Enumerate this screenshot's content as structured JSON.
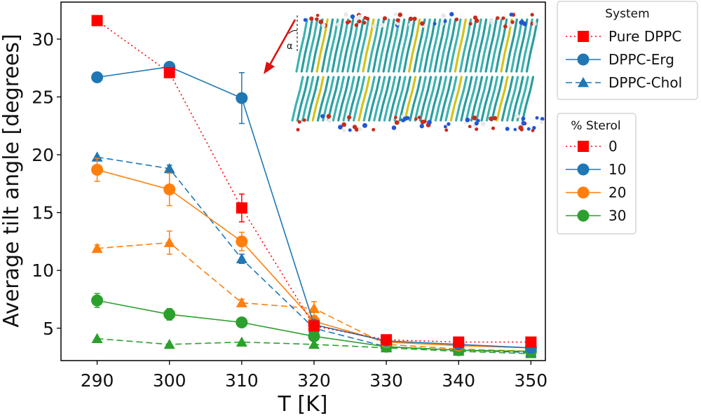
{
  "chart_data": {
    "type": "line",
    "xlabel": "T [K]",
    "ylabel": "Average tilt angle [degrees]",
    "xlim": [
      285,
      352
    ],
    "ylim": [
      2.2,
      33.2
    ],
    "xticks": [
      "290",
      "300",
      "310",
      "320",
      "330",
      "340",
      "350"
    ],
    "yticks": [
      "5",
      "10",
      "15",
      "20",
      "25",
      "30"
    ],
    "x": [
      290,
      300,
      310,
      320,
      330,
      340,
      350
    ],
    "series": [
      {
        "name": "Pure DPPC, 0% sterol",
        "system": "Pure DPPC",
        "sterol": 0,
        "color": "#ff0000",
        "marker": "square",
        "dash": "dotted",
        "values": [
          31.6,
          27.1,
          15.4,
          5.2,
          4.0,
          3.8,
          3.8
        ],
        "errors": [
          0.2,
          0.3,
          1.2,
          0.4,
          0.2,
          0.2,
          0.2
        ]
      },
      {
        "name": "DPPC-Erg, 10% sterol",
        "system": "DPPC-Erg",
        "sterol": 10,
        "color": "#1f77b4",
        "marker": "circle",
        "dash": "solid",
        "values": [
          26.7,
          27.6,
          24.9,
          5.3,
          3.9,
          3.6,
          3.3
        ],
        "errors": [
          0.2,
          0.3,
          2.2,
          0.3,
          0.1,
          0.1,
          0.1
        ]
      },
      {
        "name": "DPPC-Erg, 20% sterol",
        "system": "DPPC-Erg",
        "sterol": 20,
        "color": "#ff7f0e",
        "marker": "circle",
        "dash": "solid",
        "values": [
          18.7,
          17.0,
          12.5,
          5.6,
          3.8,
          3.5,
          3.3
        ],
        "errors": [
          1.0,
          1.4,
          0.8,
          0.4,
          0.1,
          0.1,
          0.1
        ]
      },
      {
        "name": "DPPC-Erg, 30% sterol",
        "system": "DPPC-Erg",
        "sterol": 30,
        "color": "#2ca02c",
        "marker": "circle",
        "dash": "solid",
        "values": [
          7.4,
          6.2,
          5.5,
          4.3,
          3.4,
          3.1,
          3.0
        ],
        "errors": [
          0.6,
          0.5,
          0.2,
          0.2,
          0.1,
          0.1,
          0.1
        ]
      },
      {
        "name": "DPPC-Chol, 10% sterol",
        "system": "DPPC-Chol",
        "sterol": 10,
        "color": "#1f77b4",
        "marker": "triangle",
        "dash": "dashed",
        "values": [
          19.8,
          18.8,
          11.0,
          5.0,
          3.4,
          3.1,
          2.9
        ],
        "errors": [
          0.2,
          0.3,
          0.4,
          0.2,
          0.1,
          0.1,
          0.1
        ]
      },
      {
        "name": "DPPC-Chol, 20% sterol",
        "system": "DPPC-Chol",
        "sterol": 20,
        "color": "#ff7f0e",
        "marker": "triangle",
        "dash": "dashed",
        "values": [
          11.9,
          12.4,
          7.2,
          6.7,
          3.6,
          3.2,
          3.0
        ],
        "errors": [
          0.3,
          1.0,
          0.3,
          0.6,
          0.1,
          0.1,
          0.1
        ]
      },
      {
        "name": "DPPC-Chol, 30% sterol",
        "system": "DPPC-Chol",
        "sterol": 30,
        "color": "#2ca02c",
        "marker": "triangle",
        "dash": "dashed",
        "values": [
          4.1,
          3.6,
          3.8,
          3.6,
          3.3,
          3.0,
          2.8
        ],
        "errors": [
          0.2,
          0.2,
          0.2,
          0.2,
          0.1,
          0.1,
          0.1
        ]
      }
    ],
    "legends": [
      {
        "title": "System",
        "entries": [
          {
            "label": "Pure DPPC",
            "color": "#ff0000",
            "marker": "square",
            "dash": "dotted"
          },
          {
            "label": "DPPC-Erg",
            "color": "#1f77b4",
            "marker": "circle",
            "dash": "solid"
          },
          {
            "label": "DPPC-Chol",
            "color": "#1f77b4",
            "marker": "triangle",
            "dash": "dashed"
          }
        ]
      },
      {
        "title": "% Sterol",
        "entries": [
          {
            "label": "0",
            "color": "#ff0000",
            "marker": "square",
            "dash": "dotted"
          },
          {
            "label": "10",
            "color": "#1f77b4",
            "marker": "circle",
            "dash": "solid"
          },
          {
            "label": "20",
            "color": "#ff7f0e",
            "marker": "circle",
            "dash": "solid"
          },
          {
            "label": "30",
            "color": "#2ca02c",
            "marker": "circle",
            "dash": "solid"
          }
        ]
      }
    ],
    "inset": {
      "angle_label": "α",
      "arrow_color": "#dd1111"
    }
  }
}
